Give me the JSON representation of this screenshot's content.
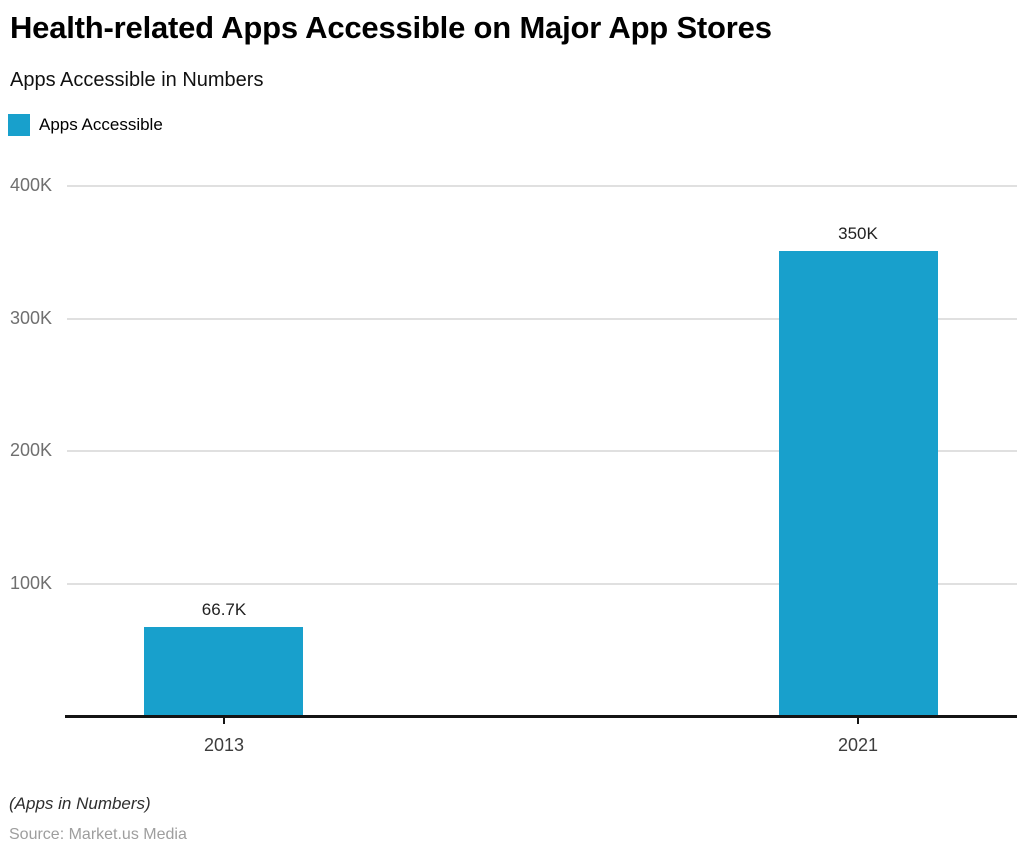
{
  "header": {
    "title": "Health-related Apps Accessible on Major App Stores",
    "subtitle": "Apps Accessible in Numbers"
  },
  "legend": {
    "items": [
      {
        "label": "Apps Accessible",
        "color": "#18A0CC"
      }
    ]
  },
  "chart_data": {
    "type": "bar",
    "title": "Health-related Apps Accessible on Major App Stores",
    "subtitle": "Apps Accessible in Numbers",
    "series_name": "Apps Accessible",
    "categories": [
      "2013",
      "2021"
    ],
    "values": [
      66700,
      350000
    ],
    "value_labels": [
      "66.7K",
      "350K"
    ],
    "xlabel": "",
    "ylabel": "",
    "ylim": [
      0,
      400000
    ],
    "yticks": [
      100000,
      200000,
      300000,
      400000
    ],
    "ytick_labels": [
      "100K",
      "200K",
      "300K",
      "400K"
    ],
    "bar_color": "#18A0CC",
    "grid": true,
    "gridline_color": "#e0e0e0",
    "legend_position": "top-left"
  },
  "footer": {
    "note": "(Apps in Numbers)",
    "source": "Source: Market.us Media"
  }
}
